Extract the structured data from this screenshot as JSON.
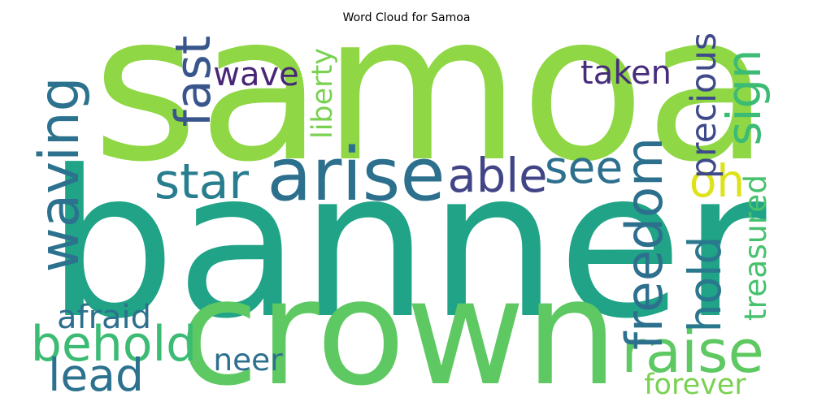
{
  "chart_data": {
    "type": "wordcloud",
    "title": "Word Cloud for Samoa",
    "words": [
      {
        "text": "samoa",
        "weight": 1.0,
        "color": "#8fd744"
      },
      {
        "text": "banner",
        "weight": 0.98,
        "color": "#20a386"
      },
      {
        "text": "crown",
        "weight": 0.72,
        "color": "#5ec962"
      },
      {
        "text": "arise",
        "weight": 0.36,
        "color": "#2d708e"
      },
      {
        "text": "raise",
        "weight": 0.3,
        "color": "#5ec962"
      },
      {
        "text": "waving",
        "weight": 0.27,
        "color": "#2c728e"
      },
      {
        "text": "behold",
        "weight": 0.25,
        "color": "#3cbb75"
      },
      {
        "text": "freedom",
        "weight": 0.25,
        "color": "#2d708e"
      },
      {
        "text": "star",
        "weight": 0.24,
        "color": "#287d8e"
      },
      {
        "text": "fast",
        "weight": 0.24,
        "color": "#39568c"
      },
      {
        "text": "sign",
        "weight": 0.23,
        "color": "#3cbb75"
      },
      {
        "text": "able",
        "weight": 0.23,
        "color": "#414487"
      },
      {
        "text": "lead",
        "weight": 0.22,
        "color": "#2c728e"
      },
      {
        "text": "see",
        "weight": 0.22,
        "color": "#2d708e"
      },
      {
        "text": "hold",
        "weight": 0.22,
        "color": "#2a788e"
      },
      {
        "text": "oh",
        "weight": 0.22,
        "color": "#dde318"
      },
      {
        "text": "precious",
        "weight": 0.17,
        "color": "#3e4a89"
      },
      {
        "text": "afraid",
        "weight": 0.16,
        "color": "#2d708e"
      },
      {
        "text": "wave",
        "weight": 0.16,
        "color": "#482677"
      },
      {
        "text": "taken",
        "weight": 0.16,
        "color": "#472c7a"
      },
      {
        "text": "treasured",
        "weight": 0.15,
        "color": "#48c16e"
      },
      {
        "text": "neer",
        "weight": 0.15,
        "color": "#2d708e"
      },
      {
        "text": "liberty",
        "weight": 0.14,
        "color": "#7ad151"
      },
      {
        "text": "forever",
        "weight": 0.14,
        "color": "#7ad151"
      }
    ]
  }
}
